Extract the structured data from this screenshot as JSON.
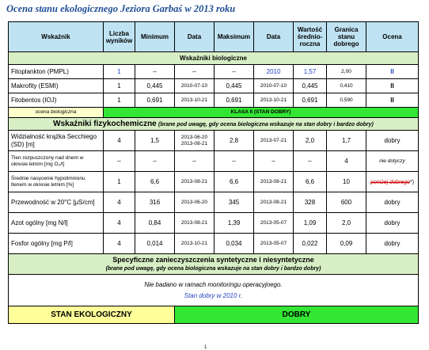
{
  "title": "Ocena stanu ekologicznego Jeziora Garbaś w 2013 roku",
  "header": {
    "wskaznik": "Wskaźnik",
    "liczba": "Liczba wyników",
    "minimum": "Minimum",
    "data1": "Data",
    "maksimum": "Maksimum",
    "data2": "Data",
    "wartosc": "Wartość średnio-roczna",
    "granica": "Granica stanu dobrego",
    "ocena": "Ocena"
  },
  "bio_section": "Wskaźniki biologiczne",
  "bio_rows": [
    {
      "name": "Fitoplankton (PMPL)",
      "count": "1",
      "min": "–",
      "date_min": "–",
      "max": "–",
      "date_max": "2010",
      "avg": "1,57",
      "limit": "2,00",
      "grade": "II"
    },
    {
      "name": "Makrofity (ESMI)",
      "count": "1",
      "min": "0,445",
      "date_min": "2010-07-10",
      "max": "0,445",
      "date_max": "2010-07-10",
      "avg": "0,445",
      "limit": "0,410",
      "grade": "II"
    },
    {
      "name": "Fitobentos (IOJ)",
      "count": "1",
      "min": "0,691",
      "date_min": "2013-10-21",
      "max": "0,691",
      "date_max": "2013-10-21",
      "avg": "0,691",
      "limit": "0,590",
      "grade": "II"
    }
  ],
  "bio_summary": {
    "label": "ocena biologiczna",
    "value": "KLASA II (STAN DOBRY)"
  },
  "phys_section": {
    "title": "Wskaźniki fizykochemiczne",
    "note": "(brane pod uwagę, gdy ocena biologiczna wskazuje na stan dobry i bardzo dobry)"
  },
  "phys_rows": [
    {
      "name": "Widzialność krążka Secchiego (SD) [m]",
      "count": "4",
      "min": "1,5",
      "date_min": "2013-06-20 2013-08-21",
      "max": "2,8",
      "date_max": "2013-07-21",
      "avg": "2,0",
      "limit": "1,7",
      "grade": "dobry"
    },
    {
      "name": "Tlen rozpuszczony nad dnem w okresie letnim [mg O₂/l]",
      "count": "–",
      "min": "–",
      "date_min": "–",
      "max": "–",
      "date_max": "–",
      "avg": "–",
      "limit": "4",
      "grade": "nie dotyczy"
    },
    {
      "name": "Średnie nasycenie hypolimnionu tlenem w okresie letnim [%]",
      "count": "1",
      "min": "6,6",
      "date_min": "2013-08-21",
      "max": "6,6",
      "date_max": "2013-08-21",
      "avg": "6,6",
      "limit": "10",
      "grade": "poniżej dobrego",
      "grade_suffix": "*)"
    },
    {
      "name": "Przewodność w 20°C [μS/cm]",
      "count": "4",
      "min": "316",
      "date_min": "2013-06-20",
      "max": "345",
      "date_max": "2013-08-21",
      "avg": "328",
      "limit": "600",
      "grade": "dobry"
    },
    {
      "name": "Azot ogólny [mg N/l]",
      "count": "4",
      "min": "0,84",
      "date_min": "2013-08-21",
      "max": "1,39",
      "date_max": "2013-05-07",
      "avg": "1,09",
      "limit": "2,0",
      "grade": "dobry"
    },
    {
      "name": "Fosfor ogólny [mg P/l]",
      "count": "4",
      "min": "0,014",
      "date_min": "2013-10-21",
      "max": "0,034",
      "date_max": "2013-05-07",
      "avg": "0,022",
      "limit": "0,09",
      "grade": "dobry"
    }
  ],
  "spec_section": {
    "title": "Specyficzne zanieczyszczenia syntetyczne i niesyntetyczne",
    "note": "(brane pod uwagę, gdy ocena biologiczna wskazuje na stan dobry i bardzo dobry)"
  },
  "spec_note1": "Nie badano w ramach monitoringu operacyjnego.",
  "spec_note2": "Stan dobry w 2010 r.",
  "footer": {
    "label": "STAN EKOLOGICZNY",
    "value": "DOBRY"
  },
  "page_mark": "1"
}
